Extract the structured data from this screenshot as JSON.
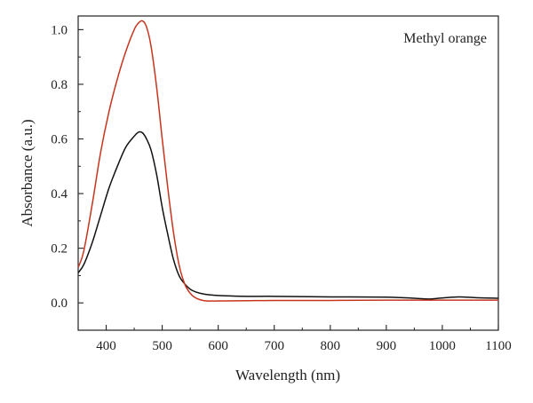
{
  "chart_data": {
    "type": "line",
    "title": "",
    "annotation": "Methyl orange",
    "xlabel": "Wavelength (nm)",
    "ylabel": "Absorbance (a.u.)",
    "xlim": [
      350,
      1100
    ],
    "ylim": [
      -0.1,
      1.05
    ],
    "xticks": [
      400,
      500,
      600,
      700,
      800,
      900,
      1000,
      1100
    ],
    "yticks": [
      0.0,
      0.2,
      0.4,
      0.6,
      0.8,
      1.0
    ],
    "ytick_labels": [
      "0.0",
      "0.2",
      "0.4",
      "0.6",
      "0.8",
      "1.0"
    ],
    "grid": false,
    "series": [
      {
        "color": "#111111",
        "x": [
          350,
          360,
          375,
          390,
          405,
          420,
          435,
          450,
          458,
          465,
          472,
          480,
          490,
          500,
          510,
          520,
          530,
          540,
          550,
          560,
          575,
          600,
          650,
          700,
          800,
          900,
          950,
          975,
          1000,
          1030,
          1060,
          1100
        ],
        "y": [
          0.11,
          0.14,
          0.22,
          0.32,
          0.42,
          0.5,
          0.57,
          0.61,
          0.625,
          0.622,
          0.6,
          0.56,
          0.47,
          0.35,
          0.25,
          0.16,
          0.1,
          0.07,
          0.05,
          0.04,
          0.032,
          0.027,
          0.024,
          0.024,
          0.022,
          0.021,
          0.017,
          0.014,
          0.018,
          0.022,
          0.019,
          0.017
        ]
      },
      {
        "color": "#c8341e",
        "x": [
          350,
          360,
          375,
          390,
          405,
          420,
          435,
          450,
          458,
          465,
          472,
          480,
          490,
          500,
          510,
          520,
          530,
          540,
          550,
          560,
          575,
          590,
          600,
          650,
          700,
          800,
          900,
          1000,
          1100
        ],
        "y": [
          0.13,
          0.19,
          0.36,
          0.55,
          0.7,
          0.82,
          0.92,
          1.0,
          1.025,
          1.032,
          1.01,
          0.94,
          0.79,
          0.6,
          0.42,
          0.26,
          0.14,
          0.07,
          0.035,
          0.018,
          0.008,
          0.007,
          0.007,
          0.008,
          0.009,
          0.009,
          0.01,
          0.01,
          0.01
        ]
      }
    ]
  }
}
